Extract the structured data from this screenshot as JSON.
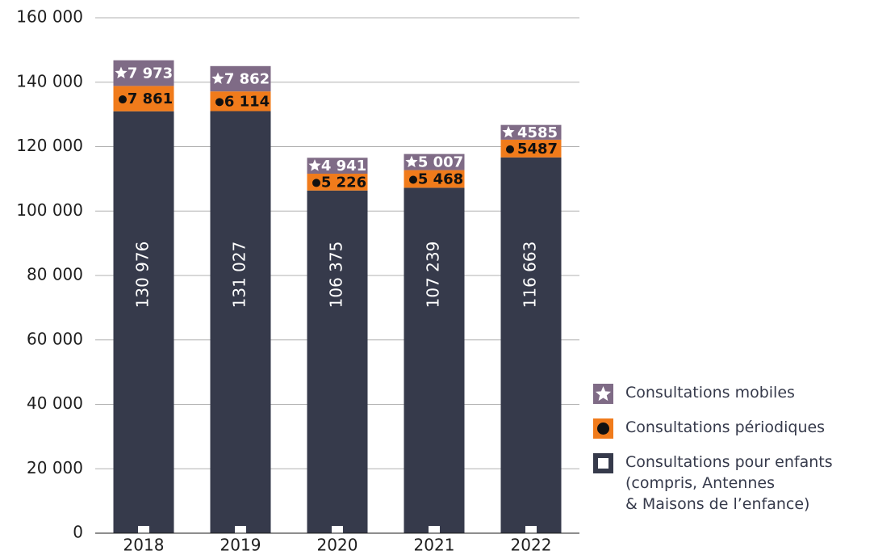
{
  "chart_data": {
    "type": "stacked-bar",
    "categories": [
      "2018",
      "2019",
      "2020",
      "2021",
      "2022"
    ],
    "series": [
      {
        "name": "Consultations pour enfants\n(compris, Antennes\n& Maisons de l’enfance)",
        "color": "#363a4b",
        "values": [
          130976,
          131027,
          106375,
          107239,
          116663
        ],
        "value_labels": [
          "130 976",
          "131 027",
          "106 375",
          "107 239",
          "116 663"
        ]
      },
      {
        "name": "Consultations périodiques",
        "color": "#f07b1b",
        "values": [
          7861,
          6114,
          5226,
          5468,
          5487
        ],
        "value_labels": [
          "7 861",
          "6 114",
          "5 226",
          "5 468",
          "5487"
        ]
      },
      {
        "name": "Consultations mobiles",
        "color": "#7f6b86",
        "values": [
          7973,
          7862,
          4941,
          5007,
          4585
        ],
        "value_labels": [
          "7 973",
          "7 862",
          "4 941",
          "5 007",
          "4585"
        ]
      }
    ],
    "ylim": [
      0,
      160000
    ],
    "yticks": [
      0,
      {
        "value": 20000,
        "label": "20 000"
      },
      {
        "value": 40000,
        "label": "40 000"
      },
      {
        "value": 60000,
        "label": "60 000"
      },
      {
        "value": 80000,
        "label": "80 000"
      },
      {
        "value": 100000,
        "label": "100 000"
      },
      {
        "value": 120000,
        "label": "120 000"
      },
      {
        "value": 140000,
        "label": "140 000"
      },
      {
        "value": 160000,
        "label": "160 000"
      }
    ],
    "grid": true
  }
}
